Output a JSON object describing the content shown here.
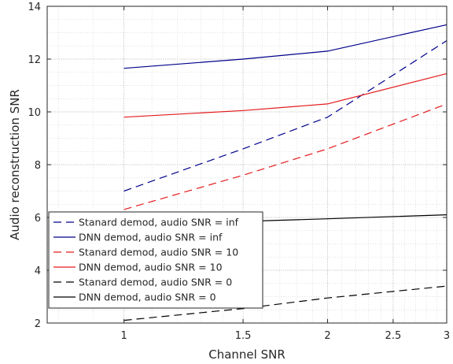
{
  "chart_data": {
    "type": "line",
    "title": "",
    "xlabel": "Channel SNR",
    "ylabel": "Audio reconstruction SNR",
    "x_scale": "log",
    "xlim": [
      0.77,
      3.0
    ],
    "ylim": [
      2,
      14
    ],
    "x_ticks": [
      1,
      1.5,
      2,
      2.5,
      3
    ],
    "x_tick_labels": [
      "1",
      "1.5",
      "2",
      "2.5",
      "3"
    ],
    "y_ticks": [
      2,
      4,
      6,
      8,
      10,
      12,
      14
    ],
    "y_tick_labels": [
      "2",
      "4",
      "6",
      "8",
      "10",
      "12",
      "14"
    ],
    "grid": true,
    "legend_position": "lower-left",
    "series": [
      {
        "name": "Stanard demod, audio SNR = inf",
        "color": "#00008b",
        "dash": "dashed",
        "x": [
          1,
          1.5,
          2,
          3
        ],
        "y": [
          7.0,
          8.6,
          9.8,
          12.7
        ]
      },
      {
        "name": "DNN demod, audio SNR = inf",
        "color": "#00008b",
        "dash": "solid",
        "x": [
          1,
          1.5,
          2,
          3
        ],
        "y": [
          11.65,
          12.0,
          12.3,
          13.3
        ]
      },
      {
        "name": "Stanard demod, audio SNR = 10",
        "color": "#e31a1c",
        "dash": "dashed",
        "x": [
          1,
          1.5,
          2,
          3
        ],
        "y": [
          6.3,
          7.6,
          8.6,
          10.3
        ]
      },
      {
        "name": "DNN demod, audio SNR = 10",
        "color": "#e31a1c",
        "dash": "solid",
        "x": [
          1,
          1.5,
          2,
          3
        ],
        "y": [
          9.8,
          10.05,
          10.3,
          11.45
        ]
      },
      {
        "name": "Stanard demod, audio SNR = 0",
        "color": "#000000",
        "dash": "dashed",
        "x": [
          1,
          1.5,
          2,
          3
        ],
        "y": [
          2.1,
          2.55,
          2.95,
          3.4
        ]
      },
      {
        "name": "DNN demod, audio SNR = 0",
        "color": "#000000",
        "dash": "solid",
        "x": [
          1,
          1.5,
          2,
          3
        ],
        "y": [
          5.7,
          5.85,
          5.95,
          6.1
        ]
      }
    ]
  }
}
